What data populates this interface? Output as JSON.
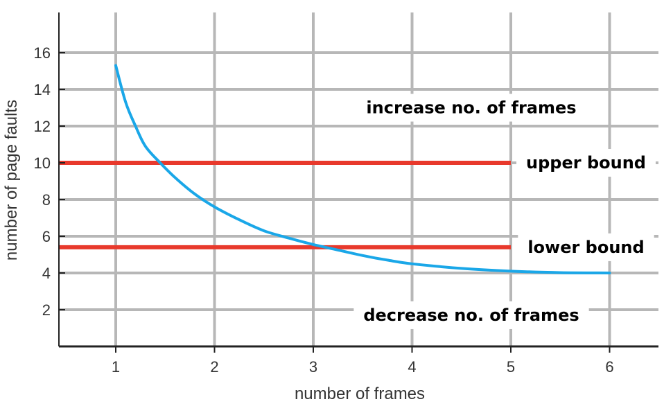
{
  "chart_data": {
    "type": "line",
    "title": "",
    "xlabel": "number of frames",
    "ylabel": "number of page faults",
    "xlim": [
      0.4,
      6.5
    ],
    "ylim": [
      0,
      18
    ],
    "xticks": [
      1,
      2,
      3,
      4,
      5,
      6
    ],
    "yticks": [
      2,
      4,
      6,
      8,
      10,
      12,
      14,
      16
    ],
    "grid": true,
    "series": [
      {
        "values": [
          {
            "x": 1.0,
            "y": 15.3
          },
          {
            "x": 1.1,
            "y": 13.3
          },
          {
            "x": 1.2,
            "y": 12.0
          },
          {
            "x": 1.3,
            "y": 10.9
          },
          {
            "x": 1.45,
            "y": 10.0
          },
          {
            "x": 1.6,
            "y": 9.2
          },
          {
            "x": 1.8,
            "y": 8.3
          },
          {
            "x": 2.0,
            "y": 7.6
          },
          {
            "x": 2.25,
            "y": 6.9
          },
          {
            "x": 2.5,
            "y": 6.3
          },
          {
            "x": 2.75,
            "y": 5.9
          },
          {
            "x": 3.0,
            "y": 5.55
          },
          {
            "x": 3.25,
            "y": 5.25
          },
          {
            "x": 3.5,
            "y": 4.95
          },
          {
            "x": 3.75,
            "y": 4.7
          },
          {
            "x": 4.0,
            "y": 4.5
          },
          {
            "x": 4.5,
            "y": 4.25
          },
          {
            "x": 5.0,
            "y": 4.1
          },
          {
            "x": 5.5,
            "y": 4.02
          },
          {
            "x": 6.0,
            "y": 4.0
          }
        ]
      }
    ],
    "reference_lines": [
      {
        "label": "upper bound",
        "y": 10,
        "x_range": [
          0.4,
          5.0
        ],
        "color": "#e8392c"
      },
      {
        "label": "lower bound",
        "y": 5.4,
        "x_range": [
          0.4,
          5.0
        ],
        "color": "#e8392c"
      }
    ],
    "annotations": [
      {
        "text": "increase no. of frames",
        "x": 4.6,
        "y": 13.0
      },
      {
        "text": "decrease no. of frames",
        "x": 4.6,
        "y": 1.7
      }
    ],
    "colors": {
      "curve": "#1aa7e8",
      "grid": "#b7b7b7",
      "axis": "#222222"
    }
  }
}
